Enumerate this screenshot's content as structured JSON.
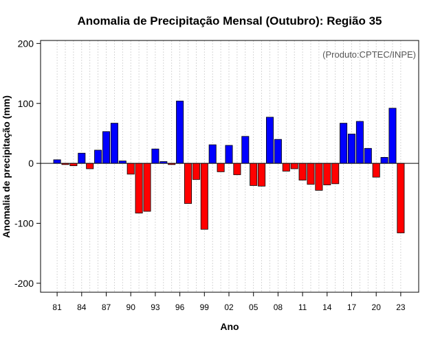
{
  "chart_data": {
    "type": "bar",
    "title": "Anomalia de Precipitação Mensal (Outubro): Região 35",
    "xlabel": "Ano",
    "ylabel": "Anomalia de precipitação (mm)",
    "credit": "(Produto:CPTEC/INPE)",
    "ylim": [
      -215,
      205
    ],
    "yticks": [
      -200,
      -100,
      0,
      100,
      200
    ],
    "ytick_labels": [
      "-200",
      "-100",
      "0",
      "100",
      "200"
    ],
    "xtick_labels": [
      "81",
      "84",
      "87",
      "90",
      "93",
      "96",
      "99",
      "02",
      "05",
      "08",
      "11",
      "14",
      "17",
      "20",
      "23"
    ],
    "grid": true,
    "positive_color": "#0000ff",
    "negative_color": "#ff0000",
    "categories": [
      "1981",
      "1982",
      "1983",
      "1984",
      "1985",
      "1986",
      "1987",
      "1988",
      "1989",
      "1990",
      "1991",
      "1992",
      "1993",
      "1994",
      "1995",
      "1996",
      "1997",
      "1998",
      "1999",
      "2000",
      "2001",
      "2002",
      "2003",
      "2004",
      "2005",
      "2006",
      "2007",
      "2008",
      "2009",
      "2010",
      "2011",
      "2012",
      "2013",
      "2014",
      "2015",
      "2016",
      "2017",
      "2018",
      "2019",
      "2020",
      "2021",
      "2022",
      "2023"
    ],
    "values": [
      6,
      -2,
      -4,
      17,
      -9,
      22,
      53,
      67,
      4,
      -18,
      -83,
      -80,
      24,
      3,
      -2,
      104,
      -67,
      -27,
      -110,
      31,
      -14,
      30,
      -19,
      45,
      -37,
      -38,
      77,
      40,
      -13,
      -9,
      -28,
      -35,
      -45,
      -36,
      -34,
      67,
      49,
      70,
      25,
      -23,
      10,
      92,
      -116
    ]
  }
}
